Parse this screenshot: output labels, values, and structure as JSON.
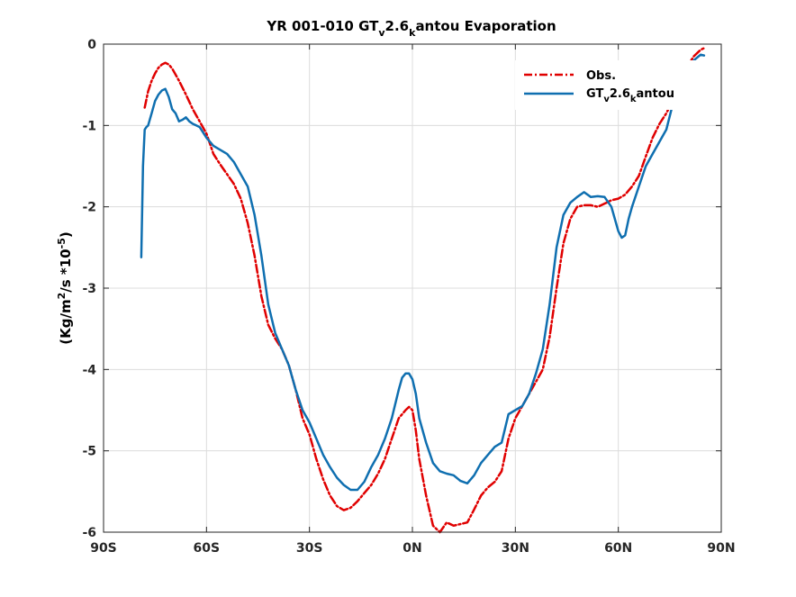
{
  "chart_data": {
    "type": "line",
    "title": {
      "pre": "YR 001-010 GT",
      "sub1": "v",
      "mid": "2.6",
      "sub2": "k",
      "post": "antou Evaporation"
    },
    "ylabel": {
      "pre": "(Kg/m",
      "sup1": "2",
      "mid": "/s *10",
      "sup2": "-5",
      "post": ")"
    },
    "xlabel": "",
    "xlim": [
      -90,
      90
    ],
    "ylim": [
      -6,
      0
    ],
    "x_ticks": [
      -90,
      -60,
      -30,
      0,
      30,
      60,
      90
    ],
    "x_tick_labels": [
      "90S",
      "60S",
      "30S",
      "0N",
      "30N",
      "60N",
      "90N"
    ],
    "y_ticks": [
      0,
      -1,
      -2,
      -3,
      -4,
      -5,
      -6
    ],
    "y_tick_labels": [
      "0",
      "-1",
      "-2",
      "-3",
      "-4",
      "-5",
      "-6"
    ],
    "grid": true,
    "legend_position": "top-right",
    "series": [
      {
        "name": "Obs.",
        "color": "#e00000",
        "style": "dashdot",
        "x": [
          -78,
          -77,
          -76,
          -75,
          -74,
          -73,
          -72,
          -71,
          -70,
          -68,
          -66,
          -64,
          -62,
          -60,
          -58,
          -56,
          -54,
          -52,
          -50,
          -48,
          -46,
          -44,
          -42,
          -40,
          -38,
          -36,
          -34,
          -32,
          -30,
          -28,
          -26,
          -24,
          -22,
          -20,
          -18,
          -16,
          -14,
          -12,
          -10,
          -8,
          -6,
          -4,
          -2,
          -1,
          0,
          1,
          2,
          4,
          6,
          8,
          10,
          12,
          14,
          16,
          18,
          20,
          22,
          24,
          26,
          28,
          30,
          32,
          34,
          36,
          38,
          40,
          42,
          44,
          46,
          48,
          50,
          52,
          54,
          56,
          58,
          60,
          62,
          64,
          66,
          68,
          70,
          72,
          74,
          76,
          78,
          80,
          82,
          84,
          85
        ],
        "y": [
          -0.78,
          -0.58,
          -0.45,
          -0.36,
          -0.29,
          -0.25,
          -0.23,
          -0.25,
          -0.3,
          -0.45,
          -0.62,
          -0.8,
          -0.95,
          -1.1,
          -1.35,
          -1.48,
          -1.6,
          -1.72,
          -1.9,
          -2.2,
          -2.6,
          -3.1,
          -3.45,
          -3.62,
          -3.75,
          -3.95,
          -4.25,
          -4.6,
          -4.8,
          -5.1,
          -5.35,
          -5.55,
          -5.68,
          -5.73,
          -5.7,
          -5.62,
          -5.52,
          -5.42,
          -5.28,
          -5.1,
          -4.85,
          -4.6,
          -4.5,
          -4.46,
          -4.5,
          -4.75,
          -5.1,
          -5.55,
          -5.92,
          -6.0,
          -5.88,
          -5.92,
          -5.9,
          -5.88,
          -5.72,
          -5.55,
          -5.45,
          -5.38,
          -5.25,
          -4.85,
          -4.6,
          -4.45,
          -4.3,
          -4.15,
          -4.0,
          -3.6,
          -3.0,
          -2.45,
          -2.15,
          -2.0,
          -1.98,
          -1.98,
          -2.0,
          -1.96,
          -1.92,
          -1.9,
          -1.85,
          -1.75,
          -1.62,
          -1.38,
          -1.15,
          -0.98,
          -0.85,
          -0.68,
          -0.45,
          -0.28,
          -0.15,
          -0.07,
          -0.05
        ]
      },
      {
        "name": "GTv2.6kantou",
        "color": "#0f6fb0",
        "style": "solid",
        "x": [
          -79,
          -78.5,
          -78,
          -77.5,
          -77,
          -76,
          -75,
          -74,
          -73,
          -72,
          -71,
          -70,
          -69,
          -68,
          -67,
          -66,
          -65,
          -64,
          -63,
          -62,
          -60,
          -58,
          -56,
          -54,
          -52,
          -50,
          -48,
          -46,
          -44,
          -42,
          -40,
          -38,
          -36,
          -34,
          -32,
          -30,
          -28,
          -26,
          -24,
          -22,
          -20,
          -18,
          -16,
          -14,
          -12,
          -10,
          -8,
          -6,
          -4,
          -3,
          -2,
          -1,
          0,
          1,
          2,
          4,
          6,
          8,
          10,
          12,
          14,
          16,
          18,
          20,
          22,
          24,
          26,
          28,
          30,
          32,
          34,
          36,
          38,
          40,
          42,
          44,
          46,
          48,
          50,
          52,
          54,
          56,
          58,
          60,
          61,
          62,
          63,
          64,
          66,
          68,
          70,
          72,
          74,
          76,
          78,
          80,
          82,
          84,
          85
        ],
        "y": [
          -2.62,
          -1.5,
          -1.05,
          -1.02,
          -1.0,
          -0.85,
          -0.7,
          -0.62,
          -0.57,
          -0.55,
          -0.65,
          -0.8,
          -0.85,
          -0.95,
          -0.93,
          -0.9,
          -0.95,
          -0.98,
          -1.0,
          -1.02,
          -1.15,
          -1.25,
          -1.3,
          -1.35,
          -1.45,
          -1.6,
          -1.75,
          -2.1,
          -2.6,
          -3.2,
          -3.55,
          -3.75,
          -3.95,
          -4.25,
          -4.5,
          -4.65,
          -4.85,
          -5.05,
          -5.2,
          -5.33,
          -5.42,
          -5.48,
          -5.48,
          -5.38,
          -5.2,
          -5.05,
          -4.85,
          -4.6,
          -4.25,
          -4.1,
          -4.05,
          -4.05,
          -4.12,
          -4.3,
          -4.6,
          -4.9,
          -5.15,
          -5.25,
          -5.28,
          -5.3,
          -5.37,
          -5.4,
          -5.3,
          -5.15,
          -5.05,
          -4.95,
          -4.9,
          -4.55,
          -4.5,
          -4.45,
          -4.3,
          -4.05,
          -3.75,
          -3.2,
          -2.5,
          -2.1,
          -1.95,
          -1.88,
          -1.82,
          -1.88,
          -1.87,
          -1.88,
          -2.0,
          -2.3,
          -2.38,
          -2.35,
          -2.15,
          -2.0,
          -1.75,
          -1.5,
          -1.35,
          -1.2,
          -1.05,
          -0.72,
          -0.45,
          -0.3,
          -0.2,
          -0.13,
          -0.14
        ]
      }
    ],
    "legend": {
      "obs": {
        "label": "Obs."
      },
      "model": {
        "pre": "GT",
        "sub1": "v",
        "mid": "2.6",
        "sub2": "k",
        "post": "antou"
      }
    }
  }
}
